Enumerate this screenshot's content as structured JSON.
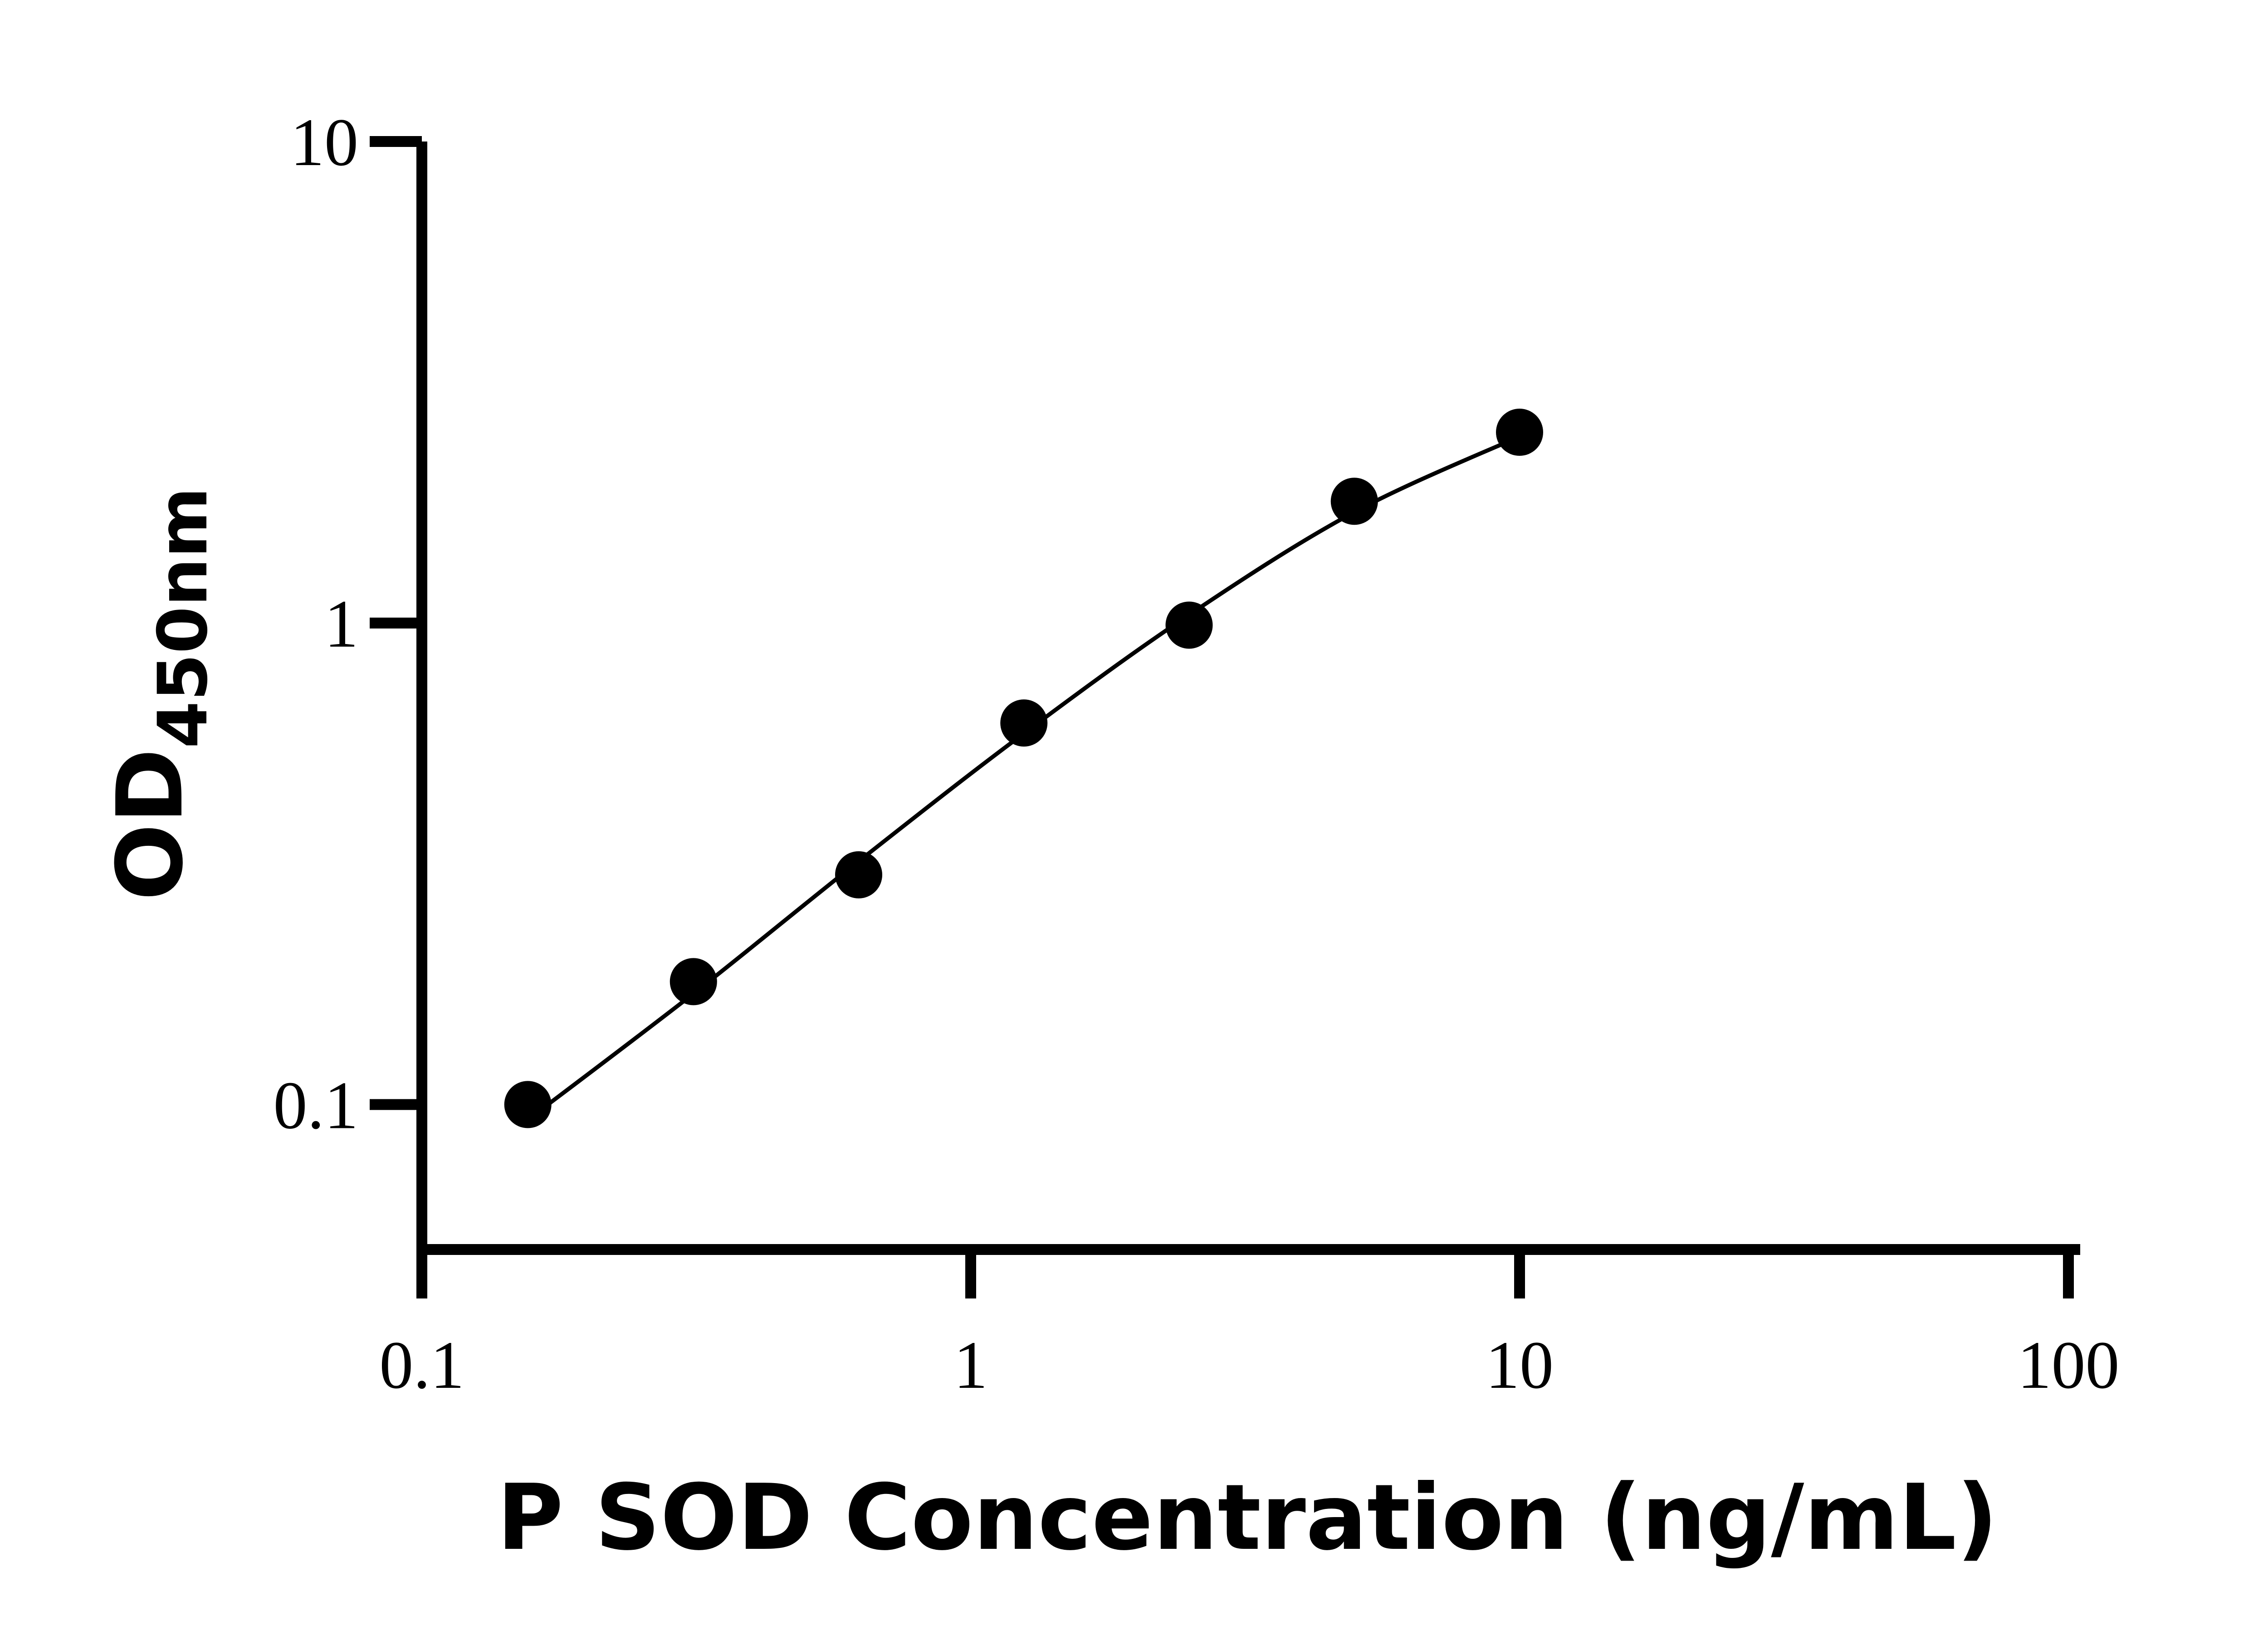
{
  "chart_data": {
    "type": "scatter",
    "xlabel": "P SOD Concentration (ng/mL)",
    "ylabel": {
      "main": "OD",
      "subscript": "450nm"
    },
    "xscale": "log",
    "yscale": "log",
    "xlim": [
      0.1,
      100
    ],
    "ylim": [
      0.05,
      10
    ],
    "x_ticks": [
      {
        "value": 0.1,
        "label": "0.1"
      },
      {
        "value": 1,
        "label": "1"
      },
      {
        "value": 10,
        "label": "10"
      },
      {
        "value": 100,
        "label": "100"
      }
    ],
    "y_ticks": [
      {
        "value": 0.1,
        "label": "0.1"
      },
      {
        "value": 1,
        "label": "1"
      },
      {
        "value": 10,
        "label": "10"
      }
    ],
    "series": [
      {
        "points": [
          {
            "x": 0.156,
            "y": 0.1
          },
          {
            "x": 0.3125,
            "y": 0.18
          },
          {
            "x": 0.625,
            "y": 0.3
          },
          {
            "x": 1.25,
            "y": 0.62
          },
          {
            "x": 2.5,
            "y": 0.99
          },
          {
            "x": 5,
            "y": 1.79
          },
          {
            "x": 10,
            "y": 2.49
          }
        ]
      }
    ],
    "fit_curve": {
      "points": [
        {
          "x": 0.156,
          "y": 0.093
        },
        {
          "x": 0.3125,
          "y": 0.17
        },
        {
          "x": 0.625,
          "y": 0.32
        },
        {
          "x": 1.25,
          "y": 0.59
        },
        {
          "x": 2.5,
          "y": 1.04
        },
        {
          "x": 5,
          "y": 1.7
        },
        {
          "x": 10,
          "y": 2.44
        }
      ]
    },
    "grid": false,
    "legend": "none",
    "colors": {
      "marker": "#000000",
      "line": "#000000",
      "axis": "#000000"
    }
  }
}
